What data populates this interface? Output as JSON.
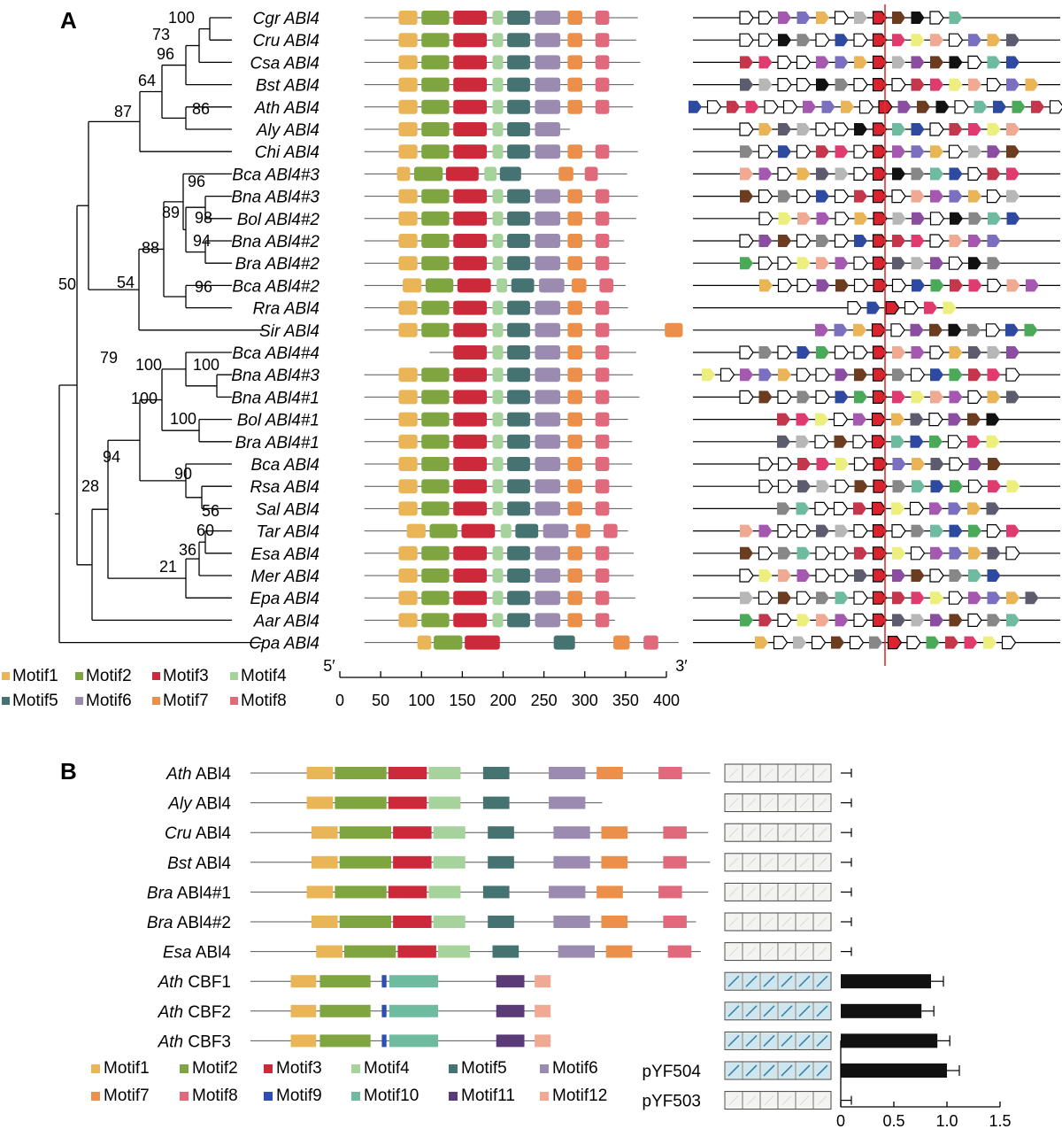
{
  "panel_a_label": "A",
  "panel_b_label": "B",
  "colors": {
    "motif1": "#e9b556",
    "motif2": "#7ea53f",
    "motif3": "#cc2a3a",
    "motif4": "#a6d29c",
    "motif5": "#457371",
    "motif6": "#9b8bb0",
    "motif7": "#ec8f4a",
    "motif8": "#e06a7c",
    "motif9": "#2d4fb5",
    "motif10": "#6fbb9f",
    "motif11": "#5b3a78",
    "motif12": "#f0a992"
  },
  "legend_a": [
    {
      "key": "motif1",
      "label": "Motif1"
    },
    {
      "key": "motif2",
      "label": "Motif2"
    },
    {
      "key": "motif3",
      "label": "Motif3"
    },
    {
      "key": "motif4",
      "label": "Motif4"
    },
    {
      "key": "motif5",
      "label": "Motif5"
    },
    {
      "key": "motif6",
      "label": "Motif6"
    },
    {
      "key": "motif7",
      "label": "Motif7"
    },
    {
      "key": "motif8",
      "label": "Motif8"
    }
  ],
  "species": [
    {
      "sp": "Cgr",
      "gene": "ABl4"
    },
    {
      "sp": "Cru",
      "gene": "ABl4"
    },
    {
      "sp": "Csa",
      "gene": "ABl4"
    },
    {
      "sp": "Bst",
      "gene": "ABl4"
    },
    {
      "sp": "Ath",
      "gene": "ABl4"
    },
    {
      "sp": "Aly",
      "gene": "ABl4"
    },
    {
      "sp": "Chi",
      "gene": "ABl4"
    },
    {
      "sp": "Bca",
      "gene": "ABl4#3"
    },
    {
      "sp": "Bna",
      "gene": "ABl4#3"
    },
    {
      "sp": "Bol",
      "gene": "ABl4#2"
    },
    {
      "sp": "Bna",
      "gene": "ABl4#2"
    },
    {
      "sp": "Bra",
      "gene": "ABl4#2"
    },
    {
      "sp": "Bca",
      "gene": "ABl4#2"
    },
    {
      "sp": "Rra",
      "gene": "ABl4"
    },
    {
      "sp": "Sir",
      "gene": "ABl4"
    },
    {
      "sp": "Bca",
      "gene": "ABl4#4"
    },
    {
      "sp": "Bna",
      "gene": "ABl4#3"
    },
    {
      "sp": "Bna",
      "gene": "ABl4#1"
    },
    {
      "sp": "Bol",
      "gene": "ABl4#1"
    },
    {
      "sp": "Bra",
      "gene": "ABl4#1"
    },
    {
      "sp": "Bca",
      "gene": "ABl4"
    },
    {
      "sp": "Rsa",
      "gene": "ABl4"
    },
    {
      "sp": "Sal",
      "gene": "ABl4"
    },
    {
      "sp": "Tar",
      "gene": "ABl4"
    },
    {
      "sp": "Esa",
      "gene": "ABl4"
    },
    {
      "sp": "Mer",
      "gene": "ABl4"
    },
    {
      "sp": "Epa",
      "gene": "ABl4"
    },
    {
      "sp": "Aar",
      "gene": "ABl4"
    },
    {
      "sp": "Cpa",
      "gene": "ABl4"
    }
  ],
  "bootstrap": [
    "100",
    "73",
    "96",
    "64",
    "86",
    "87",
    "96",
    "89",
    "98",
    "94",
    "88",
    "96",
    "54",
    "50",
    "100",
    "100",
    "100",
    "100",
    "79",
    "90",
    "94",
    "56",
    "60",
    "36",
    "21",
    "28"
  ],
  "motif_axis": {
    "start_label": "5′",
    "end_label": "3′",
    "ticks": [
      "0",
      "50",
      "100",
      "150",
      "200",
      "250",
      "300",
      "350",
      "400"
    ]
  },
  "panel_b": {
    "rows": [
      {
        "sp": "Ath",
        "name": "ABl4",
        "value": 0
      },
      {
        "sp": "Aly",
        "name": "ABl4",
        "value": 0
      },
      {
        "sp": "Cru",
        "name": "ABl4",
        "value": 0
      },
      {
        "sp": "Bst",
        "name": "ABl4",
        "value": 0
      },
      {
        "sp": "Bra",
        "name": "ABl4#1",
        "value": 0
      },
      {
        "sp": "Bra",
        "name": "ABl4#2",
        "value": 0
      },
      {
        "sp": "Esa",
        "name": "ABl4",
        "value": 0
      },
      {
        "sp": "Ath",
        "name": "CBF1",
        "value": 0.85
      },
      {
        "sp": "Ath",
        "name": "CBF2",
        "value": 0.76
      },
      {
        "sp": "Ath",
        "name": "CBF3",
        "value": 0.91
      },
      {
        "sp": "",
        "name": "pYF504",
        "value": 1.0
      },
      {
        "sp": "",
        "name": "pYF503",
        "value": 0
      }
    ],
    "legend": [
      {
        "key": "motif1",
        "label": "Motif1"
      },
      {
        "key": "motif2",
        "label": "Motif2"
      },
      {
        "key": "motif3",
        "label": "Motif3"
      },
      {
        "key": "motif4",
        "label": "Motif4"
      },
      {
        "key": "motif5",
        "label": "Motif5"
      },
      {
        "key": "motif6",
        "label": "Motif6"
      },
      {
        "key": "motif7",
        "label": "Motif7"
      },
      {
        "key": "motif8",
        "label": "Motif8"
      },
      {
        "key": "motif9",
        "label": "Motif9"
      },
      {
        "key": "motif10",
        "label": "Motif10"
      },
      {
        "key": "motif11",
        "label": "Motif11"
      },
      {
        "key": "motif12",
        "label": "Motif12"
      }
    ],
    "axis_ticks": [
      "0",
      "0.5",
      "1.0",
      "1.5"
    ]
  }
}
